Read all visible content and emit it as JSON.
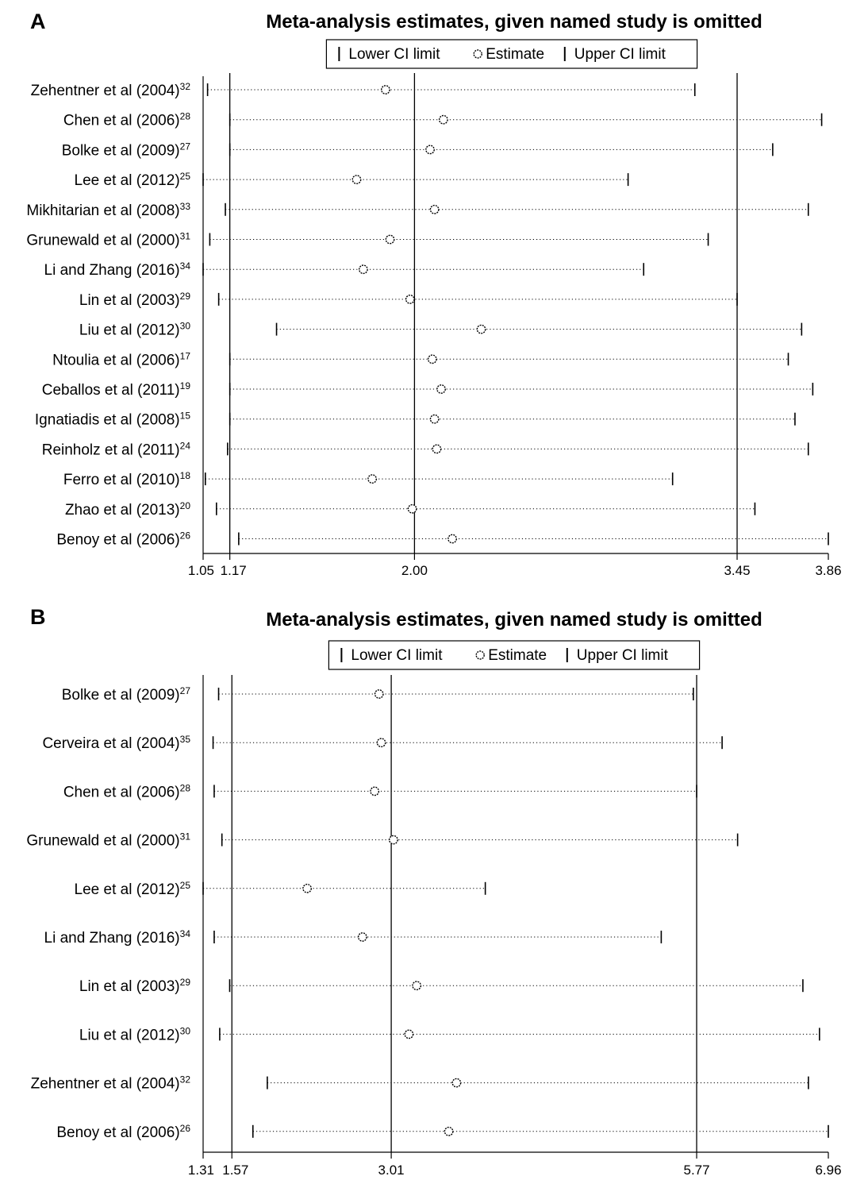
{
  "chart_data": [
    {
      "type": "forest",
      "panel_label": "A",
      "title": "Meta-analysis estimates, given named study is omitted",
      "legend": {
        "placement": "top-center",
        "items": [
          "Lower CI limit",
          "Estimate",
          "Upper CI limit"
        ]
      },
      "xlim": [
        1.05,
        3.86
      ],
      "xticks": [
        1.05,
        1.17,
        2.0,
        3.45,
        3.86
      ],
      "xtick_labels": [
        "1.05",
        "1.17",
        "2.00",
        "3.45",
        "3.86"
      ],
      "reference_lines": [
        1.17,
        2.0,
        3.45
      ],
      "studies": [
        {
          "name": "Zehentner et al (2004)",
          "ref": "32",
          "lower": 1.07,
          "estimate": 1.87,
          "upper": 3.26
        },
        {
          "name": "Chen et al (2006)",
          "ref": "28",
          "lower": 1.17,
          "estimate": 2.13,
          "upper": 3.83
        },
        {
          "name": "Bolke et al (2009)",
          "ref": "27",
          "lower": 1.17,
          "estimate": 2.07,
          "upper": 3.61
        },
        {
          "name": "Lee et al (2012)",
          "ref": "25",
          "lower": 1.05,
          "estimate": 1.74,
          "upper": 2.96
        },
        {
          "name": "Mikhitarian et al (2008)",
          "ref": "33",
          "lower": 1.15,
          "estimate": 2.09,
          "upper": 3.77
        },
        {
          "name": "Grunewald et al (2000)",
          "ref": "31",
          "lower": 1.08,
          "estimate": 1.89,
          "upper": 3.32
        },
        {
          "name": "Li and Zhang (2016)",
          "ref": "34",
          "lower": 1.05,
          "estimate": 1.77,
          "upper": 3.03
        },
        {
          "name": "Lin et al (2003)",
          "ref": "29",
          "lower": 1.12,
          "estimate": 1.98,
          "upper": 3.45
        },
        {
          "name": "Liu et al (2012)",
          "ref": "30",
          "lower": 1.38,
          "estimate": 2.3,
          "upper": 3.74
        },
        {
          "name": "Ntoulia et al (2006)",
          "ref": "17",
          "lower": 1.17,
          "estimate": 2.08,
          "upper": 3.68
        },
        {
          "name": "Ceballos et al (2011)",
          "ref": "19",
          "lower": 1.17,
          "estimate": 2.12,
          "upper": 3.79
        },
        {
          "name": "Ignatiadis et al (2008)",
          "ref": "15",
          "lower": 1.17,
          "estimate": 2.09,
          "upper": 3.71
        },
        {
          "name": "Reinholz et al (2011)",
          "ref": "24",
          "lower": 1.16,
          "estimate": 2.1,
          "upper": 3.77
        },
        {
          "name": "Ferro et al (2010)",
          "ref": "18",
          "lower": 1.06,
          "estimate": 1.81,
          "upper": 3.16
        },
        {
          "name": "Zhao et al (2013)",
          "ref": "20",
          "lower": 1.11,
          "estimate": 1.99,
          "upper": 3.53
        },
        {
          "name": "Benoy et al (2006)",
          "ref": "26",
          "lower": 1.21,
          "estimate": 2.17,
          "upper": 3.86
        }
      ]
    },
    {
      "type": "forest",
      "panel_label": "B",
      "title": "Meta-analysis estimates, given named study is omitted",
      "legend": {
        "placement": "top-center",
        "items": [
          "Lower CI limit",
          "Estimate",
          "Upper CI limit"
        ]
      },
      "xlim": [
        1.31,
        6.96
      ],
      "xticks": [
        1.31,
        1.57,
        3.01,
        5.77,
        6.96
      ],
      "xtick_labels": [
        "1.31",
        "1.57",
        "3.01",
        "5.77",
        "6.96"
      ],
      "reference_lines": [
        1.57,
        3.01,
        5.77
      ],
      "studies": [
        {
          "name": "Bolke et al (2009)",
          "ref": "27",
          "lower": 1.45,
          "estimate": 2.9,
          "upper": 5.74
        },
        {
          "name": "Cerveira et al (2004)",
          "ref": "35",
          "lower": 1.4,
          "estimate": 2.92,
          "upper": 6.0
        },
        {
          "name": "Chen et al (2006)",
          "ref": "28",
          "lower": 1.41,
          "estimate": 2.86,
          "upper": 5.77
        },
        {
          "name": "Grunewald et al (2000)",
          "ref": "31",
          "lower": 1.48,
          "estimate": 3.03,
          "upper": 6.14
        },
        {
          "name": "Lee et al (2012)",
          "ref": "25",
          "lower": 1.31,
          "estimate": 2.25,
          "upper": 3.86
        },
        {
          "name": "Li and Zhang (2016)",
          "ref": "34",
          "lower": 1.41,
          "estimate": 2.75,
          "upper": 5.45
        },
        {
          "name": "Lin et al (2003)",
          "ref": "29",
          "lower": 1.55,
          "estimate": 3.24,
          "upper": 6.73
        },
        {
          "name": "Liu et al (2012)",
          "ref": "30",
          "lower": 1.46,
          "estimate": 3.17,
          "upper": 6.88
        },
        {
          "name": "Zehentner et al (2004)",
          "ref": "32",
          "lower": 1.89,
          "estimate": 3.6,
          "upper": 6.78
        },
        {
          "name": "Benoy et al (2006)",
          "ref": "26",
          "lower": 1.76,
          "estimate": 3.53,
          "upper": 6.96
        }
      ]
    }
  ]
}
